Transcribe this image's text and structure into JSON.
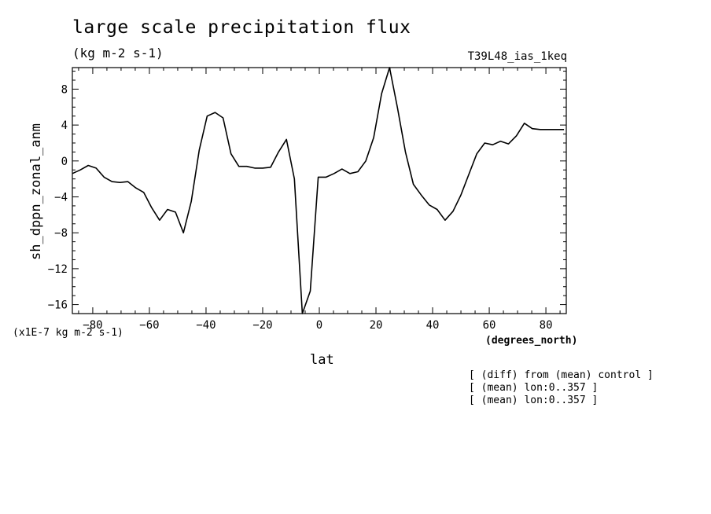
{
  "chart_data": {
    "type": "line",
    "title": "large scale precipitation flux",
    "subtitle": "(kg m-2 s-1)",
    "run_label": "T39L48_ias_1keq",
    "xlabel": "lat",
    "xunits": "(degrees_north)",
    "ylabel": "sh_dppn_zonal_anm",
    "y_scale_note": "(x1E-7 kg m-2 s-1)",
    "xlim": [
      -87.2,
      87.2
    ],
    "ylim": [
      -17,
      10.4
    ],
    "xticks": [
      -80,
      -60,
      -40,
      -20,
      0,
      20,
      40,
      60,
      80
    ],
    "yticks": [
      -16,
      -12,
      -8,
      -4,
      0,
      4,
      8
    ],
    "grid": false,
    "notes": [
      "[ (diff) from (mean) control ]",
      "[ (mean) lon:0..357 ]",
      "[ (mean) lon:0..357 ]"
    ],
    "x": [
      -87.2,
      -84.4,
      -81.6,
      -78.8,
      -76.0,
      -73.2,
      -70.4,
      -67.6,
      -64.8,
      -62.0,
      -59.2,
      -56.4,
      -53.6,
      -50.8,
      -48.0,
      -45.2,
      -42.4,
      -39.6,
      -36.8,
      -34.0,
      -31.2,
      -28.4,
      -25.6,
      -22.8,
      -20.0,
      -17.2,
      -14.4,
      -11.6,
      -8.8,
      -6.0,
      -3.2,
      -0.4,
      2.4,
      5.2,
      8.0,
      10.8,
      13.6,
      16.4,
      19.2,
      22.0,
      24.8,
      27.6,
      30.4,
      33.2,
      36.0,
      38.8,
      41.6,
      44.4,
      47.2,
      50.0,
      52.8,
      55.6,
      58.4,
      61.2,
      64.0,
      66.8,
      69.6,
      72.4,
      75.2,
      78.0,
      80.8,
      83.6,
      86.4
    ],
    "y": [
      -1.4,
      -1.0,
      -0.5,
      -0.8,
      -1.8,
      -2.3,
      -2.4,
      -2.3,
      -3.0,
      -3.5,
      -5.2,
      -6.6,
      -5.4,
      -5.7,
      -8.0,
      -4.5,
      1.2,
      5.0,
      5.4,
      4.8,
      0.8,
      -0.6,
      -0.6,
      -0.8,
      -0.8,
      -0.7,
      1.0,
      2.4,
      -2.0,
      -17.0,
      -14.5,
      -1.8,
      -1.8,
      -1.4,
      -0.9,
      -1.4,
      -1.2,
      0.0,
      2.6,
      7.5,
      10.4,
      5.9,
      1.0,
      -2.6,
      -3.8,
      -4.9,
      -5.4,
      -6.6,
      -5.6,
      -3.8,
      -1.5,
      0.8,
      2.0,
      1.8,
      2.2,
      1.9,
      2.8,
      4.2,
      3.6,
      3.5,
      3.5,
      3.5,
      3.5
    ]
  }
}
